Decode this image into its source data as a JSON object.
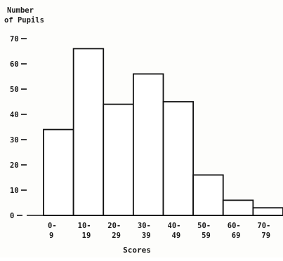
{
  "chart_data": {
    "type": "bar",
    "ylabel_lines": [
      "Number",
      "of Pupils"
    ],
    "xlabel": "Scores",
    "categories": [
      {
        "top": "0-",
        "bottom": "9"
      },
      {
        "top": "10-",
        "bottom": "19"
      },
      {
        "top": "20-",
        "bottom": "29"
      },
      {
        "top": "30-",
        "bottom": "39"
      },
      {
        "top": "40-",
        "bottom": "49"
      },
      {
        "top": "50-",
        "bottom": "59"
      },
      {
        "top": "60-",
        "bottom": "69"
      },
      {
        "top": "70-",
        "bottom": "79"
      }
    ],
    "values": [
      34,
      66,
      44,
      56,
      45,
      16,
      6,
      3
    ],
    "yticks": [
      {
        "value": 0,
        "label": "0"
      },
      {
        "value": 10,
        "label": "10"
      },
      {
        "value": 20,
        "label": "20"
      },
      {
        "value": 30,
        "label": "30"
      },
      {
        "value": 40,
        "label": "40"
      },
      {
        "value": 50,
        "label": "50"
      },
      {
        "value": 60,
        "label": "60"
      },
      {
        "value": 70,
        "label": "70"
      }
    ],
    "ylim": [
      0,
      70
    ],
    "grid": false,
    "bar_fill": "#ffffff",
    "bar_stroke": "#111111"
  }
}
